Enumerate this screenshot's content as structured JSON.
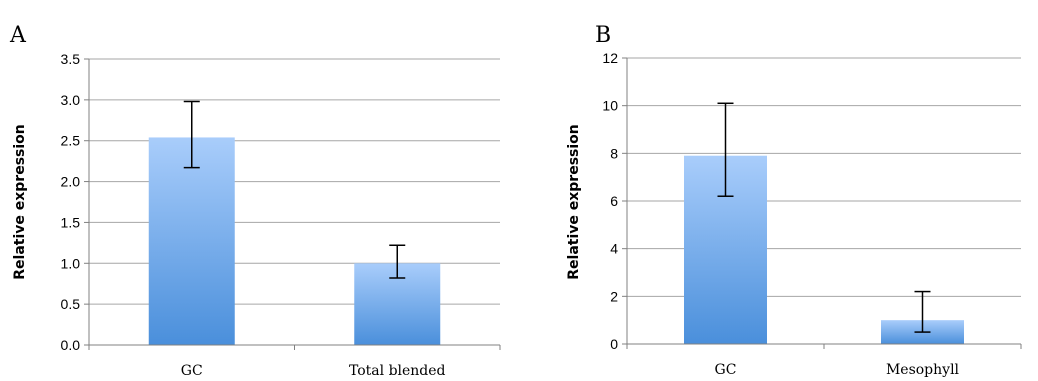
{
  "chart_data": [
    {
      "type": "bar",
      "panel": "A",
      "categories": [
        "GC",
        "Total blended"
      ],
      "values": [
        2.54,
        1.0
      ],
      "error_upper": [
        2.98,
        1.22
      ],
      "error_lower": [
        2.17,
        0.82
      ],
      "ylabel": "Relative expression",
      "xlabel": "",
      "ylim": [
        0,
        3.5
      ],
      "yticks": [
        "0.0",
        "0.5",
        "1.0",
        "1.5",
        "2.0",
        "2.5",
        "3.0",
        "3.5"
      ],
      "ytick_values": [
        0,
        0.5,
        1.0,
        1.5,
        2.0,
        2.5,
        3.0,
        3.5
      ],
      "grid": true,
      "bar_color_top": "#a9cdfb",
      "bar_color_bottom": "#4a8fdb"
    },
    {
      "type": "bar",
      "panel": "B",
      "categories": [
        "GC",
        "Mesophyll"
      ],
      "values": [
        7.9,
        1.0
      ],
      "error_upper": [
        10.1,
        2.2
      ],
      "error_lower": [
        6.2,
        0.5
      ],
      "ylabel": "Relative expression",
      "xlabel": "",
      "ylim": [
        0,
        12
      ],
      "yticks": [
        "0",
        "2",
        "4",
        "6",
        "8",
        "10",
        "12"
      ],
      "ytick_values": [
        0,
        2,
        4,
        6,
        8,
        10,
        12
      ],
      "grid": true,
      "bar_color_top": "#a9cdfb",
      "bar_color_bottom": "#4a8fdb"
    }
  ]
}
